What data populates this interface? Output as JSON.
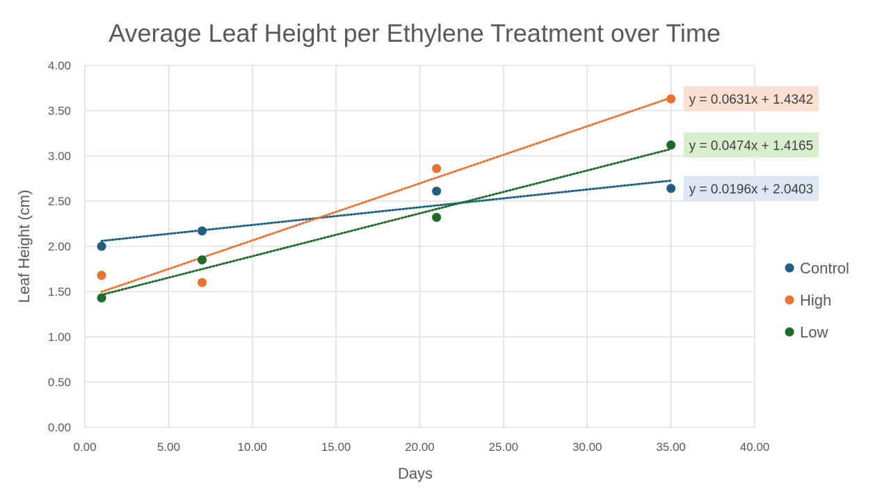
{
  "chart_data": {
    "type": "scatter",
    "title": "Average Leaf Height per Ethylene Treatment over Time",
    "xlabel": "Days",
    "ylabel": "Leaf Height (cm)",
    "xlim": [
      0,
      40
    ],
    "ylim": [
      0,
      4
    ],
    "x_ticks": [
      "0.00",
      "5.00",
      "10.00",
      "15.00",
      "20.00",
      "25.00",
      "30.00",
      "35.00",
      "40.00"
    ],
    "y_ticks": [
      "0.00",
      "0.50",
      "1.00",
      "1.50",
      "2.00",
      "2.50",
      "3.00",
      "3.50",
      "4.00"
    ],
    "grid": true,
    "legend_position": "right",
    "series": [
      {
        "name": "Control",
        "color": "#1f5f82",
        "x": [
          1,
          7,
          21,
          35
        ],
        "y": [
          2.0,
          2.17,
          2.61,
          2.64
        ],
        "trendline": {
          "slope": 0.0196,
          "intercept": 2.0403,
          "equation": "y = 0.0196x + 2.0403",
          "label_bg": "#dbe7f3"
        }
      },
      {
        "name": "High",
        "color": "#e8722e",
        "x": [
          1,
          7,
          21,
          35
        ],
        "y": [
          1.68,
          1.6,
          2.86,
          3.63
        ],
        "trendline": {
          "slope": 0.0631,
          "intercept": 1.4342,
          "equation": "y = 0.0631x + 1.4342",
          "label_bg": "#fae0d2"
        }
      },
      {
        "name": "Low",
        "color": "#1e6b2b",
        "x": [
          1,
          7,
          21,
          35
        ],
        "y": [
          1.43,
          1.85,
          2.32,
          3.12
        ],
        "trendline": {
          "slope": 0.0474,
          "intercept": 1.4165,
          "equation": "y = 0.0474x + 1.4165",
          "label_bg": "#d7efcf"
        }
      }
    ]
  }
}
